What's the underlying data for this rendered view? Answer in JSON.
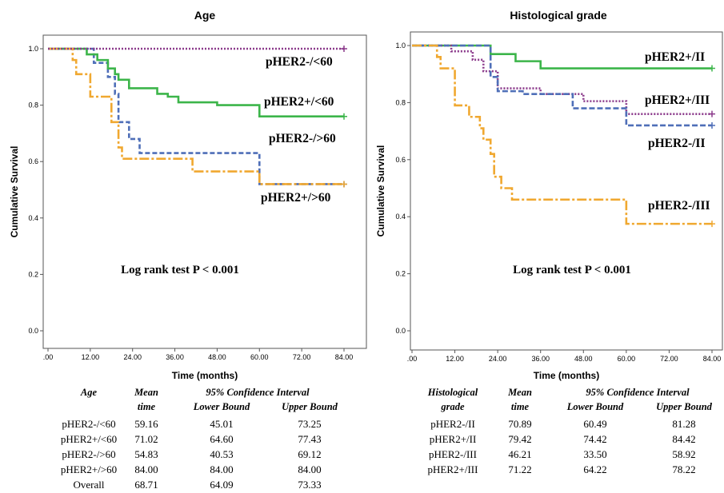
{
  "colors": {
    "pHER2-/<60": "#4f6fb8",
    "pHER2+/<60": "#3cb54a",
    "pHER2-/>60": "#f0a830",
    "pHER2+/>60": "#8b3a8b",
    "pHER2-/II": "#4f6fb8",
    "pHER2+/II": "#3cb54a",
    "pHER2-/III": "#f0a830",
    "pHER2+/III": "#8b3a8b"
  },
  "chart_data": [
    {
      "type": "line",
      "title": "Age",
      "xlabel": "Time (months)",
      "ylabel": "Cumulative Survival",
      "xlim": [
        0,
        84
      ],
      "ylim": [
        0,
        1
      ],
      "x_ticks": [
        ".00",
        "12.00",
        "24.00",
        "36.00",
        "48.00",
        "60.00",
        "72.00",
        "84.00"
      ],
      "y_ticks": [
        "0.0",
        "0.2",
        "0.4",
        "0.6",
        "0.8",
        "1.0"
      ],
      "annotation": "Log rank test P < 0.001",
      "series": [
        {
          "name": "pHER2-/<60",
          "dash": "6,3",
          "censor_end": true,
          "label": "pHER2-/<60",
          "x": [
            0,
            13,
            17,
            19,
            20,
            23,
            26,
            60,
            84
          ],
          "y": [
            1.0,
            0.95,
            0.9,
            0.84,
            0.74,
            0.68,
            0.63,
            0.52,
            0.52
          ]
        },
        {
          "name": "pHER2+/<60",
          "dash": "",
          "censor_end": true,
          "label": "pHER2+/<60",
          "x": [
            0,
            11,
            14,
            17,
            19,
            20,
            23,
            31,
            34,
            37,
            48,
            60,
            84
          ],
          "y": [
            1.0,
            0.98,
            0.96,
            0.93,
            0.91,
            0.89,
            0.86,
            0.84,
            0.83,
            0.81,
            0.8,
            0.76,
            0.76
          ]
        },
        {
          "name": "pHER2->60",
          "dash": "12,3,3,3",
          "censor_end": true,
          "label": "pHER2-/>60",
          "x": [
            0,
            7,
            8,
            12,
            18,
            20,
            21,
            41,
            60,
            84
          ],
          "y": [
            1.0,
            0.96,
            0.91,
            0.83,
            0.74,
            0.65,
            0.61,
            0.565,
            0.52,
            0.52
          ]
        },
        {
          "name": "pHER2+/>60",
          "dash": "2,2",
          "censor_end": true,
          "label": "pHER2+/>60",
          "x": [
            0,
            84
          ],
          "y": [
            1.0,
            1.0
          ]
        }
      ]
    },
    {
      "type": "line",
      "title": "Histological grade",
      "xlabel": "Time (months)",
      "ylabel": "Cumulative Survival",
      "xlim": [
        0,
        84
      ],
      "ylim": [
        0,
        1
      ],
      "x_ticks": [
        ".00",
        "12.00",
        "24.00",
        "36.00",
        "48.00",
        "60.00",
        "72.00",
        "84.00"
      ],
      "y_ticks": [
        "0.0",
        "0.2",
        "0.4",
        "0.6",
        "0.8",
        "1.0"
      ],
      "annotation": "Log rank test P < 0.001",
      "series": [
        {
          "name": "pHER2+/II",
          "dash": "",
          "censor_end": true,
          "label": "pHER2+/II",
          "x": [
            0,
            22,
            29,
            36,
            84
          ],
          "y": [
            1.0,
            0.97,
            0.945,
            0.92,
            0.92
          ]
        },
        {
          "name": "pHER2+/III",
          "dash": "2,2",
          "censor_end": true,
          "label": "pHER2+/III",
          "x": [
            0,
            11,
            17,
            20,
            24,
            36,
            48,
            60,
            84
          ],
          "y": [
            1.0,
            0.98,
            0.95,
            0.91,
            0.85,
            0.83,
            0.805,
            0.76,
            0.76
          ]
        },
        {
          "name": "pHER2-/II",
          "dash": "7,3",
          "censor_end": true,
          "label": "pHER2-/II",
          "x": [
            0,
            22,
            24,
            31,
            45,
            60,
            84
          ],
          "y": [
            1.0,
            0.89,
            0.84,
            0.83,
            0.78,
            0.72,
            0.72
          ]
        },
        {
          "name": "pHER2-/III",
          "dash": "12,3,3,3",
          "censor_end": true,
          "label": "pHER2-/III",
          "x": [
            0,
            7,
            8,
            12,
            16,
            19,
            20,
            22,
            23,
            25,
            28,
            60,
            84
          ],
          "y": [
            1.0,
            0.96,
            0.92,
            0.79,
            0.75,
            0.71,
            0.67,
            0.62,
            0.54,
            0.5,
            0.46,
            0.375,
            0.375
          ]
        }
      ]
    }
  ],
  "tables": [
    {
      "header_group": "95% Confidence Interval",
      "columns": [
        "Age",
        "Mean time",
        "Lower Bound",
        "Upper Bound"
      ],
      "col0_line1": "Age",
      "col1_line1": "Mean",
      "col1_line2": "time",
      "rows": [
        [
          "pHER2-/<60",
          "59.16",
          "45.01",
          "73.25"
        ],
        [
          "pHER2+/<60",
          "71.02",
          "64.60",
          "77.43"
        ],
        [
          "pHER2-/>60",
          "54.83",
          "40.53",
          "69.12"
        ],
        [
          "pHER2+/>60",
          "84.00",
          "84.00",
          "84.00"
        ],
        [
          "Overall",
          "68.71",
          "64.09",
          "73.33"
        ]
      ]
    },
    {
      "header_group": "95% Confidence Interval",
      "columns": [
        "Histological grade",
        "Mean time",
        "Lower Bound",
        "Upper Bound"
      ],
      "col0_line1": "Histological",
      "col0_line2": "grade",
      "col1_line1": "Mean",
      "col1_line2": "time",
      "rows": [
        [
          "pHER2-/II",
          "70.89",
          "60.49",
          "81.28"
        ],
        [
          "pHER2+/II",
          "79.42",
          "74.42",
          "84.42"
        ],
        [
          "pHER2-/III",
          "46.21",
          "33.50",
          "58.92"
        ],
        [
          "pHER2+/III",
          "71.22",
          "64.22",
          "78.22"
        ]
      ]
    }
  ]
}
